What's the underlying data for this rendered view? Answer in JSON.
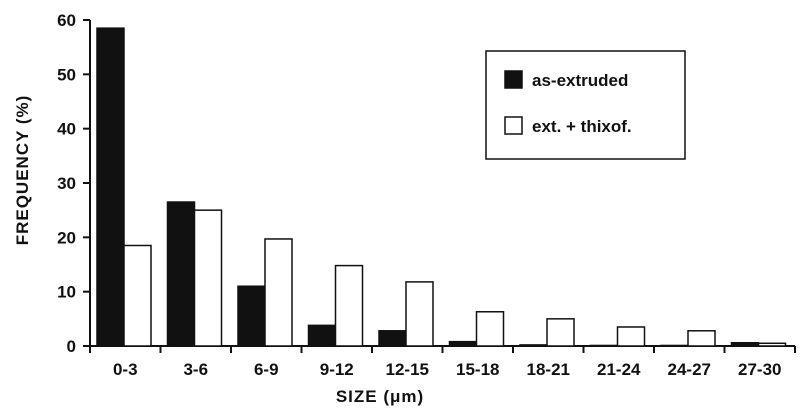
{
  "chart_data": {
    "type": "bar",
    "title": "",
    "xlabel": "SIZE (μm)",
    "ylabel": "FREQUENCY (%)",
    "ylim": [
      0,
      60
    ],
    "yticks": [
      0,
      10,
      20,
      30,
      40,
      50,
      60
    ],
    "categories": [
      "0-3",
      "3-6",
      "6-9",
      "9-12",
      "12-15",
      "15-18",
      "18-21",
      "21-24",
      "24-27",
      "27-30"
    ],
    "series": [
      {
        "name": "as-extruded",
        "color": "#111111",
        "values": [
          58.5,
          26.5,
          11,
          3.8,
          2.8,
          0.8,
          0.2,
          0.1,
          0.1,
          0.6
        ]
      },
      {
        "name": "ext. + thixof.",
        "color": "#ffffff",
        "values": [
          18.5,
          25,
          19.7,
          14.8,
          11.8,
          6.3,
          5,
          3.5,
          2.8,
          0.5
        ]
      }
    ],
    "legend_position": "top-right",
    "grid": false
  }
}
